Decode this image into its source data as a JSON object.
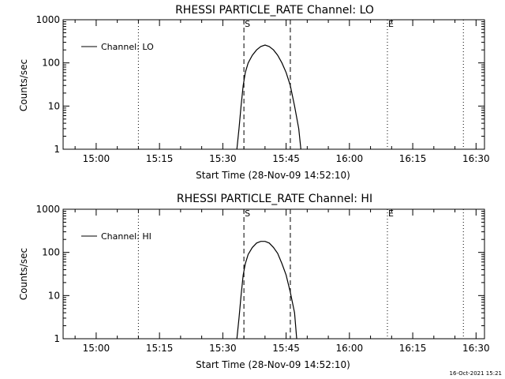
{
  "chart_data": [
    {
      "type": "line",
      "title": "RHESSI PARTICLE_RATE Channel: LO",
      "xlabel": "Start Time (28-Nov-09 14:52:10)",
      "ylabel": "Counts/sec",
      "yscale": "log",
      "ylim": [
        1,
        1000
      ],
      "xlim": [
        "14:52:10",
        "16:32"
      ],
      "x_ticks": [
        "15:00",
        "15:15",
        "15:30",
        "15:45",
        "16:00",
        "16:15",
        "16:30"
      ],
      "y_ticks": [
        "1",
        "10",
        "100",
        "1000"
      ],
      "legend": {
        "placement": "top-left",
        "entries": [
          "Channel: LO"
        ]
      },
      "vertical_markers": [
        {
          "time": "15:10",
          "style": "dotted",
          "label": ""
        },
        {
          "time": "15:35",
          "style": "dashed",
          "label": "S"
        },
        {
          "time": "15:46",
          "style": "dashed",
          "label": ""
        },
        {
          "time": "16:09",
          "style": "dotted",
          "label": "E"
        },
        {
          "time": "16:27",
          "style": "dotted",
          "label": ""
        }
      ],
      "series": [
        {
          "name": "Channel: LO",
          "points": [
            [
              "15:33:20",
              1
            ],
            [
              "15:33:50",
              3
            ],
            [
              "15:34:20",
              10
            ],
            [
              "15:34:50",
              30
            ],
            [
              "15:35:20",
              60
            ],
            [
              "15:36:00",
              100
            ],
            [
              "15:37:00",
              150
            ],
            [
              "15:38:00",
              200
            ],
            [
              "15:39:00",
              240
            ],
            [
              "15:40:00",
              260
            ],
            [
              "15:41:00",
              240
            ],
            [
              "15:42:00",
              200
            ],
            [
              "15:43:00",
              150
            ],
            [
              "15:44:00",
              100
            ],
            [
              "15:45:00",
              60
            ],
            [
              "15:46:00",
              30
            ],
            [
              "15:47:00",
              10
            ],
            [
              "15:48:00",
              3
            ],
            [
              "15:48:30",
              1
            ]
          ]
        }
      ]
    },
    {
      "type": "line",
      "title": "RHESSI PARTICLE_RATE Channel: HI",
      "xlabel": "Start Time (28-Nov-09 14:52:10)",
      "ylabel": "Counts/sec",
      "yscale": "log",
      "ylim": [
        1,
        1000
      ],
      "xlim": [
        "14:52:10",
        "16:32"
      ],
      "x_ticks": [
        "15:00",
        "15:15",
        "15:30",
        "15:45",
        "16:00",
        "16:15",
        "16:30"
      ],
      "y_ticks": [
        "1",
        "10",
        "100",
        "1000"
      ],
      "legend": {
        "placement": "top-left",
        "entries": [
          "Channel: HI"
        ]
      },
      "vertical_markers": [
        {
          "time": "15:10",
          "style": "dotted",
          "label": ""
        },
        {
          "time": "15:35",
          "style": "dashed",
          "label": "S"
        },
        {
          "time": "15:46",
          "style": "dashed",
          "label": ""
        },
        {
          "time": "16:09",
          "style": "dotted",
          "label": "E"
        },
        {
          "time": "16:27",
          "style": "dotted",
          "label": ""
        }
      ],
      "series": [
        {
          "name": "Channel: HI",
          "points": [
            [
              "15:33:20",
              1
            ],
            [
              "15:33:50",
              3
            ],
            [
              "15:34:20",
              10
            ],
            [
              "15:34:50",
              30
            ],
            [
              "15:35:20",
              55
            ],
            [
              "15:36:00",
              90
            ],
            [
              "15:37:00",
              130
            ],
            [
              "15:38:00",
              165
            ],
            [
              "15:39:00",
              180
            ],
            [
              "15:40:00",
              180
            ],
            [
              "15:41:00",
              165
            ],
            [
              "15:42:00",
              130
            ],
            [
              "15:43:00",
              95
            ],
            [
              "15:44:00",
              55
            ],
            [
              "15:45:00",
              30
            ],
            [
              "15:46:00",
              12
            ],
            [
              "15:47:00",
              4
            ],
            [
              "15:47:30",
              1
            ]
          ]
        }
      ]
    }
  ],
  "footer": {
    "timestamp": "16-Oct-2021 15:21"
  }
}
